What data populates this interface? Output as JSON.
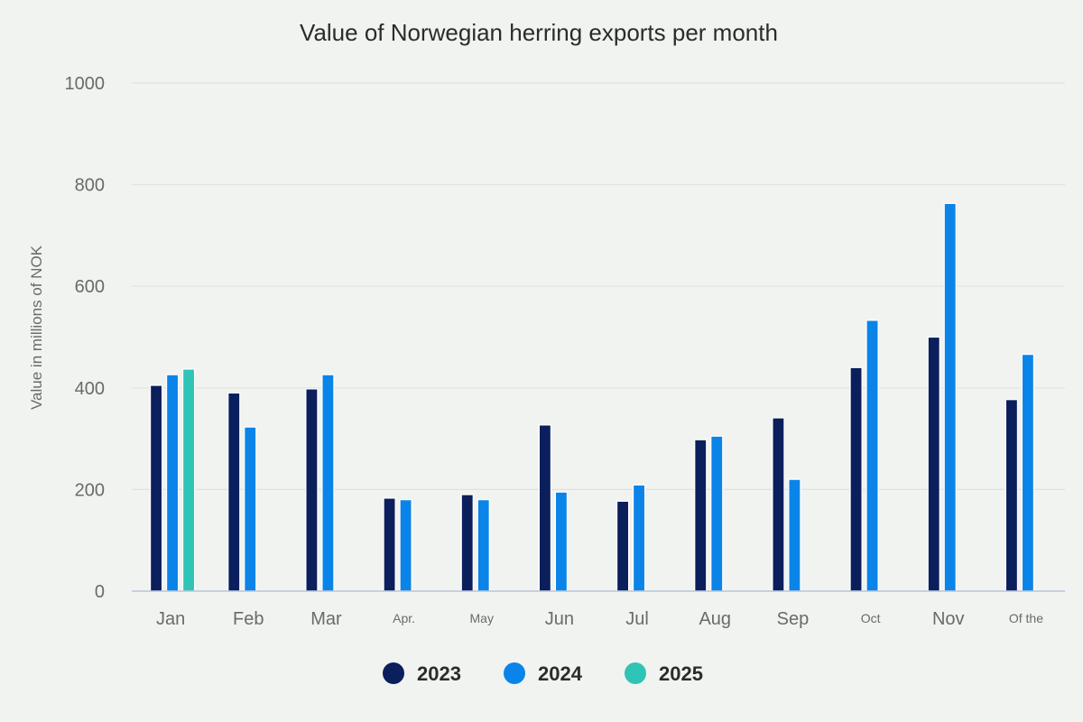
{
  "chart_data": {
    "type": "bar",
    "title": "Value of Norwegian herring exports per month",
    "ylabel": "Value in millions of NOK",
    "xlabel": "",
    "ylim": [
      0,
      1000
    ],
    "yticks": [
      0,
      200,
      400,
      600,
      800,
      1000
    ],
    "grid": true,
    "legend_position": "bottom",
    "categories": [
      "Jan",
      "Feb",
      "Mar",
      "Apr.",
      "May",
      "Jun",
      "Jul",
      "Aug",
      "Sep",
      "Oct",
      "Nov",
      "Of the"
    ],
    "series": [
      {
        "name": "2023",
        "color": "#0a1f5c",
        "values": [
          405,
          390,
          398,
          183,
          190,
          327,
          177,
          298,
          341,
          440,
          500,
          377
        ]
      },
      {
        "name": "2024",
        "color": "#0a84e8",
        "values": [
          426,
          323,
          426,
          180,
          180,
          195,
          209,
          305,
          220,
          533,
          763,
          466
        ]
      },
      {
        "name": "2025",
        "color": "#2ec4b6",
        "values": [
          437,
          null,
          null,
          null,
          null,
          null,
          null,
          null,
          null,
          null,
          null,
          null
        ]
      }
    ]
  }
}
